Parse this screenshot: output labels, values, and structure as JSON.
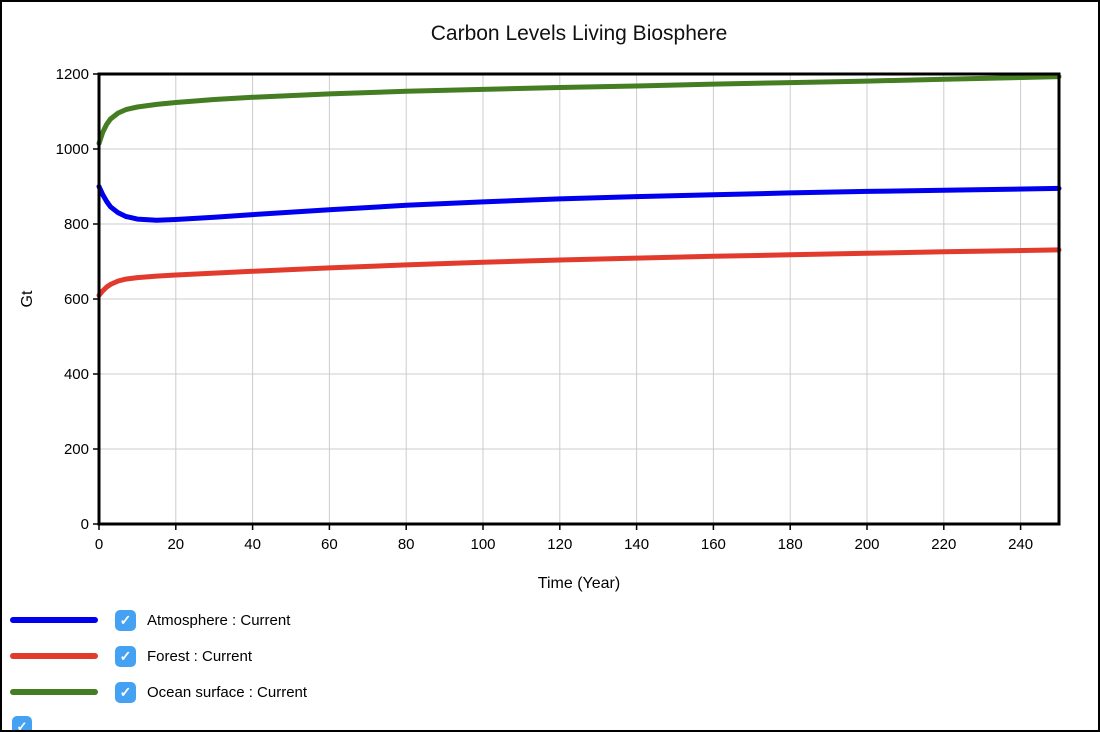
{
  "window": {
    "background": "#ffffff",
    "border_color": "#000000"
  },
  "chart_data": {
    "type": "line",
    "title": "Carbon Levels Living Biosphere",
    "xlabel": "Time (Year)",
    "ylabel": "Gt",
    "xlim": [
      0,
      250
    ],
    "ylim": [
      0,
      1200
    ],
    "xticks": [
      0,
      20,
      40,
      60,
      80,
      100,
      120,
      140,
      160,
      180,
      200,
      220,
      240
    ],
    "yticks": [
      0,
      200,
      400,
      600,
      800,
      1000,
      1200
    ],
    "grid": true,
    "grid_color": "#cccccc",
    "legend_position": "bottom-left",
    "x": [
      0,
      1,
      2,
      3,
      5,
      7,
      10,
      15,
      20,
      30,
      40,
      60,
      80,
      100,
      120,
      140,
      160,
      180,
      200,
      220,
      250
    ],
    "series": [
      {
        "name": "Atmosphere : Current",
        "color": "#0000ee",
        "checked": true,
        "values": [
          900,
          878,
          860,
          846,
          830,
          820,
          813,
          810,
          812,
          818,
          825,
          838,
          850,
          859,
          867,
          873,
          878,
          883,
          887,
          890,
          895
        ]
      },
      {
        "name": "Forest : Current",
        "color": "#e23b2e",
        "checked": true,
        "values": [
          610,
          622,
          632,
          639,
          648,
          653,
          657,
          661,
          664,
          669,
          674,
          683,
          691,
          698,
          704,
          709,
          714,
          718,
          722,
          726,
          731
        ]
      },
      {
        "name": "Ocean surface : Current",
        "color": "#447d22",
        "checked": true,
        "values": [
          1015,
          1045,
          1066,
          1080,
          1096,
          1105,
          1112,
          1119,
          1124,
          1132,
          1138,
          1147,
          1154,
          1159,
          1164,
          1168,
          1173,
          1177,
          1181,
          1186,
          1193
        ]
      }
    ]
  },
  "legend": {
    "checkbox_color": "#45a1f2",
    "check_glyph": "✓"
  }
}
